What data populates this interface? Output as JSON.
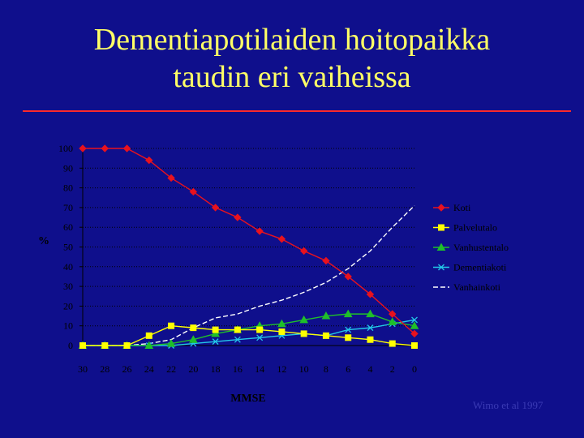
{
  "slide": {
    "title_line1": "Dementiapotilaiden hoitopaikka",
    "title_line2": "taudin eri vaiheissa",
    "source": "Wimo et al 1997",
    "title_color": "#ffff66",
    "background": "#0f0f8c",
    "rule_color": "#ff2a2a"
  },
  "chart_data": {
    "type": "line",
    "xlabel": "MMSE",
    "ylabel": "%",
    "x": [
      30,
      28,
      26,
      24,
      22,
      20,
      18,
      16,
      14,
      12,
      10,
      8,
      6,
      4,
      2,
      0
    ],
    "x_reversed": true,
    "ylim": [
      0,
      100
    ],
    "yticks": [
      0,
      10,
      20,
      30,
      40,
      50,
      60,
      70,
      80,
      90,
      100
    ],
    "grid": "horizontal dotted",
    "legend_position": "right",
    "series": [
      {
        "name": "Koti",
        "color": "#e8121e",
        "marker": "diamond",
        "dash": "",
        "values": [
          100,
          100,
          100,
          94,
          85,
          78,
          70,
          65,
          58,
          54,
          48,
          43,
          35,
          26,
          16,
          6
        ]
      },
      {
        "name": "Palvelutalo",
        "color": "#ffff00",
        "marker": "square",
        "dash": "",
        "values": [
          0,
          0,
          0,
          5,
          10,
          9,
          8,
          8,
          8,
          7,
          6,
          5,
          4,
          3,
          1,
          0
        ]
      },
      {
        "name": "Vanhustentalo",
        "color": "#1fbf2a",
        "marker": "triangle",
        "dash": "",
        "values": [
          0,
          0,
          0,
          0,
          1,
          3,
          6,
          8,
          10,
          11,
          13,
          15,
          16,
          16,
          12,
          10
        ]
      },
      {
        "name": "Dementiakoti",
        "color": "#22c8e8",
        "marker": "x",
        "dash": "",
        "values": [
          0,
          0,
          0,
          0,
          0,
          1,
          2,
          3,
          4,
          5,
          6,
          5,
          8,
          9,
          11,
          13
        ]
      },
      {
        "name": "Vanhainkoti",
        "color": "#ffffff",
        "marker": "none",
        "dash": "6,3",
        "values": [
          0,
          0,
          0,
          1,
          3,
          9,
          14,
          16,
          20,
          23,
          27,
          32,
          39,
          48,
          60,
          71
        ]
      }
    ]
  }
}
